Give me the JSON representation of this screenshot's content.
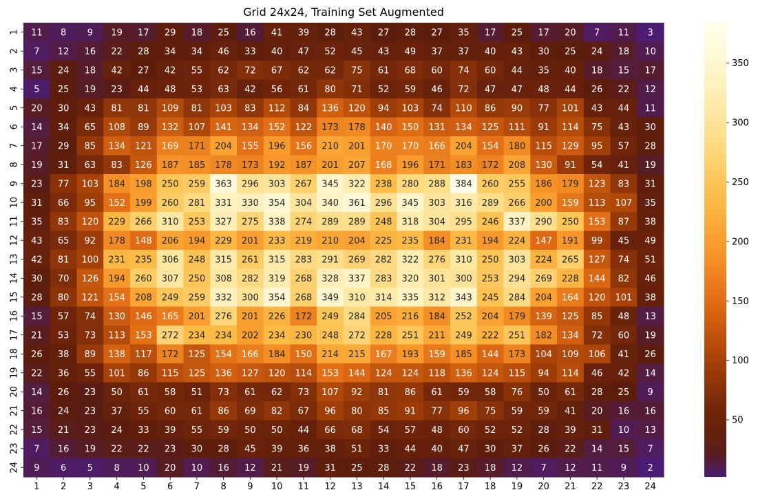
{
  "chart_data": {
    "type": "heatmap",
    "title": "Grid 24x24, Training Set Augmented",
    "xlabel": "",
    "ylabel": "",
    "x_categories": [
      "1",
      "2",
      "3",
      "4",
      "5",
      "6",
      "7",
      "8",
      "9",
      "10",
      "11",
      "12",
      "13",
      "14",
      "15",
      "16",
      "17",
      "18",
      "19",
      "20",
      "21",
      "22",
      "23",
      "24"
    ],
    "y_categories": [
      "1",
      "2",
      "3",
      "4",
      "5",
      "6",
      "7",
      "8",
      "9",
      "10",
      "11",
      "12",
      "13",
      "14",
      "15",
      "16",
      "17",
      "18",
      "19",
      "20",
      "21",
      "22",
      "23",
      "24"
    ],
    "values": [
      [
        11,
        8,
        9,
        19,
        17,
        29,
        18,
        25,
        16,
        41,
        39,
        28,
        43,
        27,
        28,
        27,
        35,
        17,
        25,
        17,
        20,
        7,
        11,
        3
      ],
      [
        7,
        12,
        16,
        22,
        28,
        34,
        34,
        46,
        33,
        40,
        47,
        52,
        45,
        43,
        49,
        37,
        37,
        40,
        43,
        30,
        25,
        24,
        18,
        10
      ],
      [
        15,
        24,
        18,
        42,
        27,
        42,
        55,
        62,
        72,
        67,
        62,
        62,
        75,
        61,
        68,
        60,
        74,
        60,
        44,
        35,
        40,
        18,
        15,
        17
      ],
      [
        5,
        25,
        19,
        23,
        44,
        48,
        53,
        63,
        42,
        56,
        61,
        80,
        71,
        52,
        59,
        46,
        72,
        47,
        47,
        48,
        44,
        26,
        22,
        12
      ],
      [
        20,
        30,
        43,
        81,
        81,
        109,
        81,
        103,
        83,
        112,
        84,
        136,
        120,
        94,
        103,
        74,
        110,
        86,
        90,
        77,
        101,
        43,
        44,
        11
      ],
      [
        14,
        34,
        65,
        108,
        89,
        132,
        107,
        141,
        134,
        152,
        122,
        173,
        178,
        140,
        150,
        131,
        134,
        125,
        111,
        91,
        114,
        75,
        43,
        30
      ],
      [
        17,
        29,
        85,
        134,
        121,
        169,
        171,
        204,
        155,
        196,
        156,
        210,
        201,
        170,
        170,
        166,
        204,
        154,
        180,
        115,
        129,
        95,
        57,
        28
      ],
      [
        19,
        31,
        63,
        83,
        126,
        187,
        185,
        178,
        173,
        192,
        187,
        201,
        207,
        168,
        196,
        171,
        183,
        172,
        208,
        130,
        91,
        54,
        41,
        19
      ],
      [
        23,
        77,
        103,
        184,
        198,
        250,
        259,
        363,
        296,
        303,
        267,
        345,
        322,
        238,
        280,
        288,
        384,
        260,
        255,
        186,
        179,
        123,
        83,
        31
      ],
      [
        31,
        66,
        95,
        152,
        199,
        260,
        281,
        331,
        330,
        354,
        304,
        340,
        361,
        296,
        345,
        303,
        316,
        289,
        266,
        200,
        159,
        113,
        107,
        35
      ],
      [
        35,
        83,
        120,
        229,
        266,
        310,
        253,
        327,
        275,
        338,
        274,
        289,
        289,
        248,
        318,
        304,
        295,
        246,
        337,
        290,
        250,
        153,
        87,
        38
      ],
      [
        43,
        65,
        92,
        178,
        148,
        206,
        194,
        229,
        201,
        233,
        219,
        210,
        204,
        225,
        235,
        184,
        231,
        194,
        224,
        147,
        191,
        99,
        45,
        49
      ],
      [
        42,
        81,
        100,
        231,
        235,
        306,
        248,
        315,
        261,
        315,
        283,
        291,
        269,
        282,
        322,
        276,
        310,
        250,
        303,
        224,
        265,
        127,
        74,
        51
      ],
      [
        30,
        70,
        126,
        194,
        260,
        307,
        250,
        308,
        282,
        319,
        268,
        328,
        337,
        283,
        320,
        301,
        300,
        253,
        294,
        269,
        228,
        144,
        82,
        46
      ],
      [
        28,
        80,
        121,
        154,
        208,
        249,
        259,
        332,
        300,
        354,
        268,
        349,
        310,
        314,
        335,
        312,
        343,
        245,
        284,
        204,
        164,
        120,
        101,
        38
      ],
      [
        15,
        57,
        74,
        130,
        146,
        165,
        201,
        276,
        201,
        226,
        172,
        249,
        284,
        205,
        216,
        184,
        252,
        204,
        179,
        139,
        125,
        85,
        48,
        13
      ],
      [
        21,
        53,
        73,
        113,
        153,
        272,
        234,
        234,
        202,
        234,
        230,
        248,
        272,
        228,
        251,
        211,
        249,
        222,
        251,
        182,
        134,
        72,
        60,
        19
      ],
      [
        26,
        38,
        89,
        138,
        117,
        172,
        125,
        154,
        166,
        184,
        150,
        214,
        215,
        167,
        193,
        159,
        185,
        144,
        173,
        104,
        109,
        106,
        41,
        26
      ],
      [
        22,
        36,
        55,
        101,
        86,
        115,
        125,
        136,
        127,
        120,
        114,
        153,
        144,
        124,
        124,
        118,
        136,
        124,
        115,
        94,
        114,
        46,
        42,
        14
      ],
      [
        14,
        26,
        23,
        50,
        61,
        58,
        51,
        73,
        61,
        62,
        73,
        107,
        92,
        81,
        86,
        61,
        59,
        58,
        76,
        50,
        61,
        28,
        25,
        9
      ],
      [
        16,
        24,
        23,
        37,
        55,
        60,
        61,
        86,
        69,
        82,
        67,
        96,
        80,
        85,
        91,
        77,
        96,
        75,
        59,
        59,
        41,
        20,
        16,
        16
      ],
      [
        15,
        21,
        23,
        24,
        33,
        39,
        55,
        59,
        50,
        50,
        44,
        66,
        68,
        54,
        57,
        48,
        60,
        52,
        52,
        28,
        39,
        31,
        10,
        13
      ],
      [
        7,
        16,
        19,
        22,
        22,
        23,
        30,
        28,
        45,
        39,
        36,
        38,
        51,
        33,
        44,
        40,
        47,
        30,
        37,
        26,
        22,
        14,
        15,
        7
      ],
      [
        9,
        6,
        5,
        8,
        10,
        20,
        10,
        16,
        12,
        21,
        19,
        31,
        25,
        28,
        22,
        18,
        23,
        18,
        12,
        7,
        12,
        11,
        9,
        2
      ]
    ],
    "vmin": 2,
    "vmax": 384,
    "colormap": "afmhot-like (dark purple -> dark brown -> orange -> yellow -> pale cream)",
    "colorbar_ticks": [
      50,
      100,
      150,
      200,
      250,
      300,
      350
    ],
    "annotations": "cell values printed in each cell",
    "grid": false,
    "legend": "colorbar-right"
  }
}
